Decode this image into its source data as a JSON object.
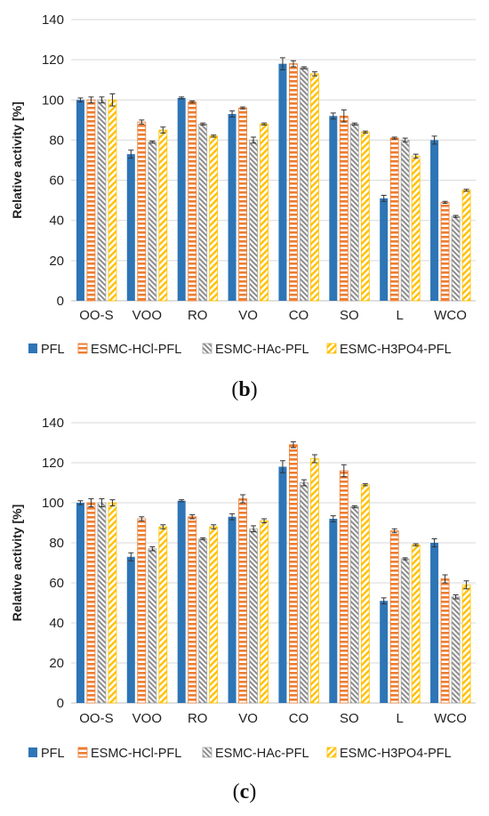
{
  "panels": [
    {
      "label_open": "(",
      "label_letter": "b",
      "label_close": ")"
    },
    {
      "label_open": "(",
      "label_letter": "c",
      "label_close": ")"
    }
  ],
  "legend": [
    "PFL",
    "ESMC-HCl-PFL",
    "ESMC-HAc-PFL",
    "ESMC-H3PO4-PFL"
  ],
  "colors": {
    "PFL": "#2e75b6",
    "HCl": "#ed7d31",
    "HAc": "#a5a5a5",
    "H3PO4": "#ffc000"
  },
  "chart_data": [
    {
      "type": "bar",
      "title": "",
      "xlabel": "",
      "ylabel": "Relative activity [%]",
      "ylim": [
        0,
        140
      ],
      "yticks": [
        0,
        20,
        40,
        60,
        80,
        100,
        120,
        140
      ],
      "grid": true,
      "legend_position": "bottom",
      "categories": [
        "OO-S",
        "VOO",
        "RO",
        "VO",
        "CO",
        "SO",
        "L",
        "WCO"
      ],
      "series": [
        {
          "name": "PFL",
          "values": [
            100,
            73,
            101,
            93,
            118,
            92,
            51,
            80
          ],
          "errors": [
            1,
            2,
            0.5,
            1.5,
            3,
            1.5,
            1.5,
            2
          ]
        },
        {
          "name": "ESMC-HCl-PFL",
          "values": [
            100,
            89,
            99,
            96,
            118,
            92,
            81,
            49
          ],
          "errors": [
            1.5,
            1,
            0.5,
            0.5,
            1.5,
            3,
            0.5,
            0.5
          ]
        },
        {
          "name": "ESMC-HAc-PFL",
          "values": [
            100,
            79,
            88,
            80,
            116,
            88,
            80,
            42
          ],
          "errors": [
            1.5,
            0.5,
            0.5,
            1.5,
            0.5,
            0.5,
            1,
            0.5
          ]
        },
        {
          "name": "ESMC-H3PO4-PFL",
          "values": [
            100,
            85,
            82,
            88,
            113,
            84,
            72,
            55
          ],
          "errors": [
            3,
            1.5,
            0.5,
            0.5,
            1,
            0.5,
            1,
            0.5
          ]
        }
      ]
    },
    {
      "type": "bar",
      "title": "",
      "xlabel": "",
      "ylabel": "Relative activity [%]",
      "ylim": [
        0,
        140
      ],
      "yticks": [
        0,
        20,
        40,
        60,
        80,
        100,
        120,
        140
      ],
      "grid": true,
      "legend_position": "bottom",
      "categories": [
        "OO-S",
        "VOO",
        "RO",
        "VO",
        "CO",
        "SO",
        "L",
        "WCO"
      ],
      "series": [
        {
          "name": "PFL",
          "values": [
            100,
            73,
            101,
            93,
            118,
            92,
            51,
            80
          ],
          "errors": [
            1,
            2,
            0.5,
            1.5,
            3,
            1.5,
            1.5,
            2
          ]
        },
        {
          "name": "ESMC-HCl-PFL",
          "values": [
            100,
            92,
            93,
            102,
            129,
            116,
            86,
            62
          ],
          "errors": [
            2,
            1,
            1,
            2,
            1.5,
            3,
            1,
            2
          ]
        },
        {
          "name": "ESMC-HAc-PFL",
          "values": [
            100,
            77,
            82,
            87,
            110,
            98,
            72,
            53
          ],
          "errors": [
            2,
            1,
            0.5,
            1.5,
            1.5,
            0.5,
            0.5,
            1
          ]
        },
        {
          "name": "ESMC-H3PO4-PFL",
          "values": [
            100,
            88,
            88,
            91,
            122,
            109,
            79,
            59
          ],
          "errors": [
            1.5,
            1,
            1,
            1,
            2,
            0.5,
            0.5,
            2
          ]
        }
      ]
    }
  ]
}
